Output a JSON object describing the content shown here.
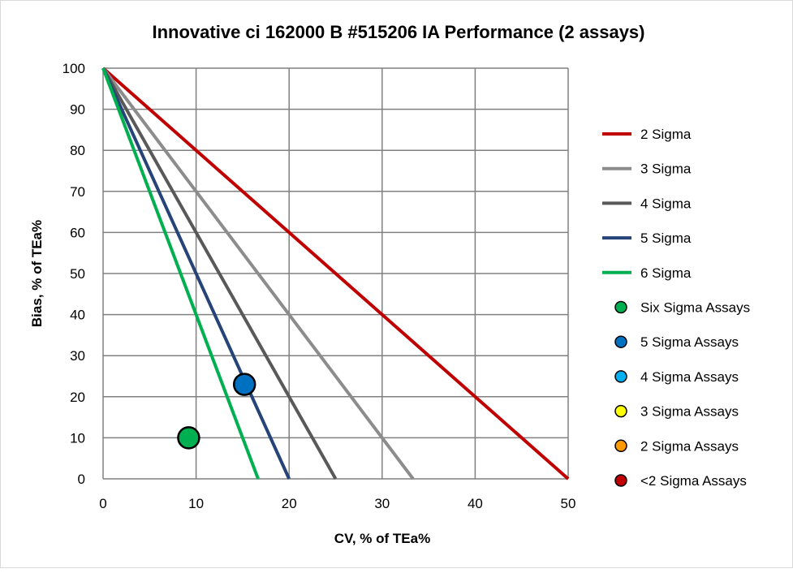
{
  "chart_data": {
    "type": "scatter",
    "title": "Innovative  ci 162000 B #515206 IA Performance (2 assays)",
    "xlabel": "CV, % of TEa%",
    "ylabel": "Bias, % of TEa%",
    "xlim": [
      0,
      50
    ],
    "ylim": [
      0,
      100
    ],
    "xticks": [
      0,
      10,
      20,
      30,
      40,
      50
    ],
    "yticks": [
      0,
      10,
      20,
      30,
      40,
      50,
      60,
      70,
      80,
      90,
      100
    ],
    "grid": true,
    "legend_position": "right",
    "lines": [
      {
        "name": "2 Sigma",
        "color": "#C00000",
        "points": [
          [
            0,
            100
          ],
          [
            50,
            0
          ]
        ]
      },
      {
        "name": "3 Sigma",
        "color": "#8C8C8C",
        "points": [
          [
            0,
            100
          ],
          [
            33.33,
            0
          ]
        ]
      },
      {
        "name": "4 Sigma",
        "color": "#595959",
        "points": [
          [
            0,
            100
          ],
          [
            25,
            0
          ]
        ]
      },
      {
        "name": "5 Sigma",
        "color": "#264478",
        "points": [
          [
            0,
            100
          ],
          [
            20,
            0
          ]
        ]
      },
      {
        "name": "6 Sigma",
        "color": "#00B050",
        "points": [
          [
            0,
            100
          ],
          [
            16.67,
            0
          ]
        ]
      }
    ],
    "point_series": [
      {
        "name": "Six Sigma Assays",
        "color": "#00B050",
        "points": [
          [
            9.2,
            10
          ]
        ]
      },
      {
        "name": "5 Sigma Assays",
        "color": "#0070C0",
        "points": [
          [
            15.2,
            23
          ]
        ]
      },
      {
        "name": "4 Sigma Assays",
        "color": "#00B0F0",
        "points": []
      },
      {
        "name": "3 Sigma Assays",
        "color": "#FFFF00",
        "points": []
      },
      {
        "name": "2 Sigma Assays",
        "color": "#FF9900",
        "points": []
      },
      {
        "name": "<2 Sigma Assays",
        "color": "#C00000",
        "points": []
      }
    ]
  }
}
